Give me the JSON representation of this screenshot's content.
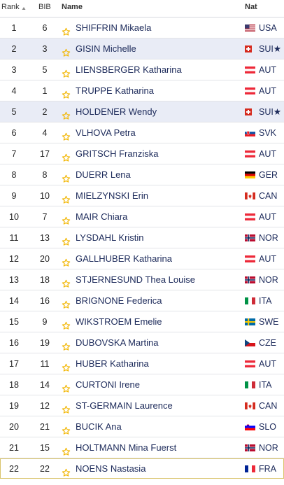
{
  "header": {
    "rank": "Rank",
    "bib": "BIB",
    "name": "Name",
    "nat": "Nat"
  },
  "rows": [
    {
      "rank": "1",
      "bib": "6",
      "name": "SHIFFRIN Mikaela",
      "nat": "USA",
      "flag": "usa",
      "highlight": false
    },
    {
      "rank": "2",
      "bib": "3",
      "name": "GISIN Michelle",
      "nat": "SUI★",
      "flag": "sui",
      "highlight": true
    },
    {
      "rank": "3",
      "bib": "5",
      "name": "LIENSBERGER Katharina",
      "nat": "AUT",
      "flag": "aut",
      "highlight": false
    },
    {
      "rank": "4",
      "bib": "1",
      "name": "TRUPPE Katharina",
      "nat": "AUT",
      "flag": "aut",
      "highlight": false
    },
    {
      "rank": "5",
      "bib": "2",
      "name": "HOLDENER Wendy",
      "nat": "SUI★",
      "flag": "sui",
      "highlight": true
    },
    {
      "rank": "6",
      "bib": "4",
      "name": "VLHOVA Petra",
      "nat": "SVK",
      "flag": "svk",
      "highlight": false
    },
    {
      "rank": "7",
      "bib": "17",
      "name": "GRITSCH Franziska",
      "nat": "AUT",
      "flag": "aut",
      "highlight": false
    },
    {
      "rank": "8",
      "bib": "8",
      "name": "DUERR Lena",
      "nat": "GER",
      "flag": "ger",
      "highlight": false
    },
    {
      "rank": "9",
      "bib": "10",
      "name": "MIELZYNSKI Erin",
      "nat": "CAN",
      "flag": "can",
      "highlight": false
    },
    {
      "rank": "10",
      "bib": "7",
      "name": "MAIR Chiara",
      "nat": "AUT",
      "flag": "aut",
      "highlight": false
    },
    {
      "rank": "11",
      "bib": "13",
      "name": "LYSDAHL Kristin",
      "nat": "NOR",
      "flag": "nor",
      "highlight": false
    },
    {
      "rank": "12",
      "bib": "20",
      "name": "GALLHUBER Katharina",
      "nat": "AUT",
      "flag": "aut",
      "highlight": false
    },
    {
      "rank": "13",
      "bib": "18",
      "name": "STJERNESUND Thea Louise",
      "nat": "NOR",
      "flag": "nor",
      "highlight": false
    },
    {
      "rank": "14",
      "bib": "16",
      "name": "BRIGNONE Federica",
      "nat": "ITA",
      "flag": "ita",
      "highlight": false
    },
    {
      "rank": "15",
      "bib": "9",
      "name": "WIKSTROEM Emelie",
      "nat": "SWE",
      "flag": "swe",
      "highlight": false
    },
    {
      "rank": "16",
      "bib": "19",
      "name": "DUBOVSKA Martina",
      "nat": "CZE",
      "flag": "cze",
      "highlight": false
    },
    {
      "rank": "17",
      "bib": "11",
      "name": "HUBER Katharina",
      "nat": "AUT",
      "flag": "aut",
      "highlight": false
    },
    {
      "rank": "18",
      "bib": "14",
      "name": "CURTONI Irene",
      "nat": "ITA",
      "flag": "ita",
      "highlight": false
    },
    {
      "rank": "19",
      "bib": "12",
      "name": "ST-GERMAIN Laurence",
      "nat": "CAN",
      "flag": "can",
      "highlight": false
    },
    {
      "rank": "20",
      "bib": "21",
      "name": "BUCIK Ana",
      "nat": "SLO",
      "flag": "slo",
      "highlight": false
    },
    {
      "rank": "21",
      "bib": "15",
      "name": "HOLTMANN Mina Fuerst",
      "nat": "NOR",
      "flag": "nor",
      "highlight": false
    },
    {
      "rank": "22",
      "bib": "22",
      "name": "NOENS Nastasia",
      "nat": "FRA",
      "flag": "fra",
      "highlight": false
    }
  ],
  "colors": {
    "star": "#f2b705",
    "name_text": "#1c2a5a",
    "highlight_row": "#e9ecf6"
  }
}
